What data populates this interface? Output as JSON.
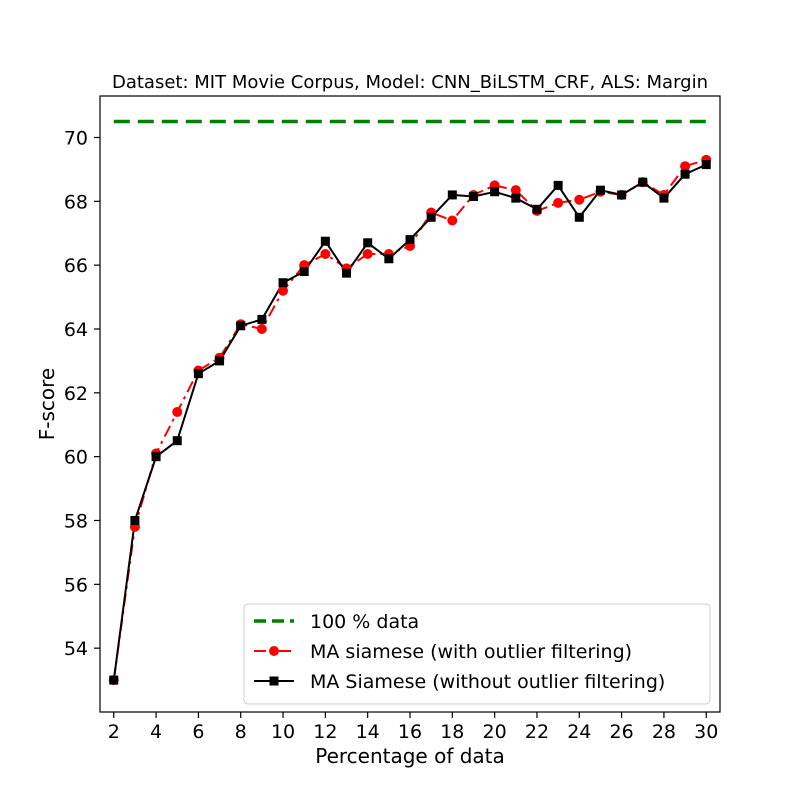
{
  "chart_data": {
    "type": "line",
    "title": "Dataset: MIT Movie Corpus, Model: CNN_BiLSTM_CRF, ALS: Margin",
    "xlabel": "Percentage of data",
    "ylabel": "F-score",
    "xlim": [
      1.35,
      30.65
    ],
    "ylim": [
      52.0,
      71.3
    ],
    "xticks": [
      2,
      4,
      6,
      8,
      10,
      12,
      14,
      16,
      18,
      20,
      22,
      24,
      26,
      28,
      30
    ],
    "yticks": [
      54,
      56,
      58,
      60,
      62,
      64,
      66,
      68,
      70
    ],
    "grid": false,
    "legend_position": "lower-right",
    "series": [
      {
        "name": "100 % data",
        "color": "#008000",
        "style": "dashed",
        "marker": "none",
        "x": [
          2,
          30
        ],
        "values": [
          70.5,
          70.5
        ]
      },
      {
        "name": "MA siamese (with outlier filtering)",
        "color": "#ff0000",
        "style": "dashdot",
        "marker": "circle",
        "x": [
          2,
          3,
          4,
          5,
          6,
          7,
          8,
          9,
          10,
          11,
          12,
          13,
          14,
          15,
          16,
          17,
          18,
          19,
          20,
          21,
          22,
          23,
          24,
          25,
          26,
          27,
          28,
          29,
          30
        ],
        "values": [
          53.0,
          57.8,
          60.1,
          61.4,
          62.7,
          63.1,
          64.15,
          64.0,
          65.2,
          66.0,
          66.35,
          65.9,
          66.35,
          66.35,
          66.6,
          67.65,
          67.4,
          68.2,
          68.5,
          68.35,
          67.7,
          67.95,
          68.05,
          68.3,
          68.2,
          68.6,
          68.2,
          69.1,
          69.3
        ]
      },
      {
        "name": "MA Siamese (without outlier filtering)",
        "color": "#000000",
        "style": "solid",
        "marker": "square",
        "x": [
          2,
          3,
          4,
          5,
          6,
          7,
          8,
          9,
          10,
          11,
          12,
          13,
          14,
          15,
          16,
          17,
          18,
          19,
          20,
          21,
          22,
          23,
          24,
          25,
          26,
          27,
          28,
          29,
          30
        ],
        "values": [
          53.0,
          58.0,
          60.0,
          60.5,
          62.6,
          63.0,
          64.1,
          64.3,
          65.45,
          65.8,
          66.75,
          65.75,
          66.7,
          66.2,
          66.8,
          67.5,
          68.2,
          68.15,
          68.3,
          68.1,
          67.75,
          68.5,
          67.5,
          68.35,
          68.2,
          68.6,
          68.1,
          68.85,
          69.15
        ]
      }
    ]
  }
}
